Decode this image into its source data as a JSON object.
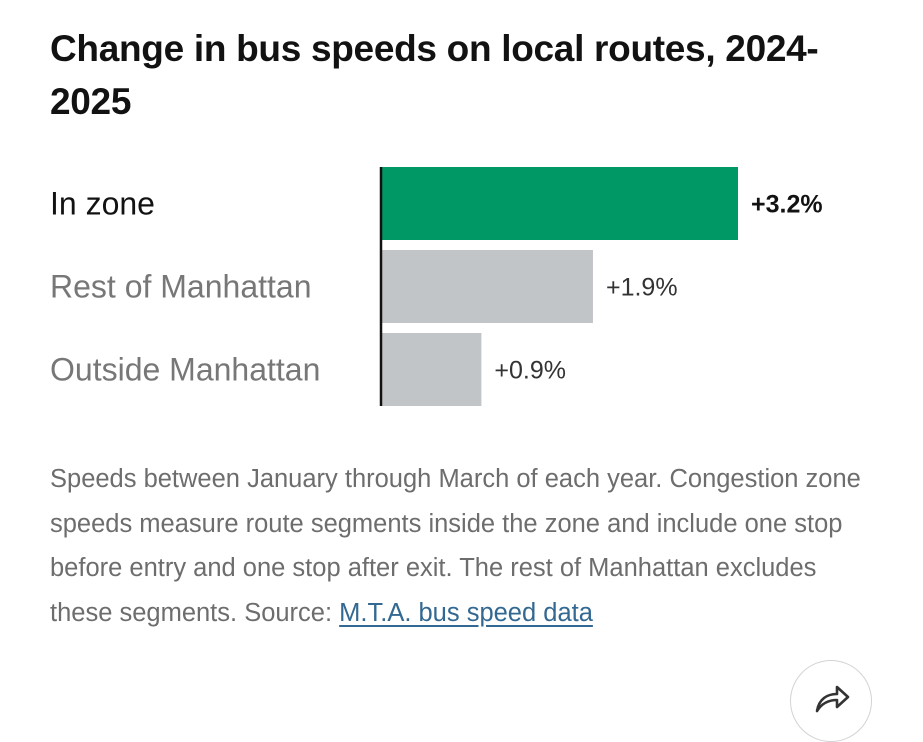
{
  "chart_data": {
    "type": "bar",
    "orientation": "horizontal",
    "title": "Change in bus speeds on local routes, 2024-2025",
    "categories": [
      "In zone",
      "Rest of Manhattan",
      "Outside Manhattan"
    ],
    "values": [
      3.2,
      1.9,
      0.9
    ],
    "value_labels": [
      "+3.2%",
      "+1.9%",
      "+0.9%"
    ],
    "unit": "%",
    "highlight_index": 0,
    "colors": {
      "highlight": "#009966",
      "default": "#c2c5c8",
      "baseline": "#121212",
      "highlight_label": "#121212",
      "default_label": "#777777"
    },
    "xlim": [
      0,
      3.2
    ],
    "grid": false,
    "legend": "none"
  },
  "note": {
    "text": "Speeds between January through March of each year. Congestion zone speeds measure route segments inside the zone and include one stop before entry and one stop after exit. The rest of Manhattan excludes these segments. Source: ",
    "link_text": "M.T.A. bus speed data"
  },
  "share_icon": "share-arrow-icon"
}
